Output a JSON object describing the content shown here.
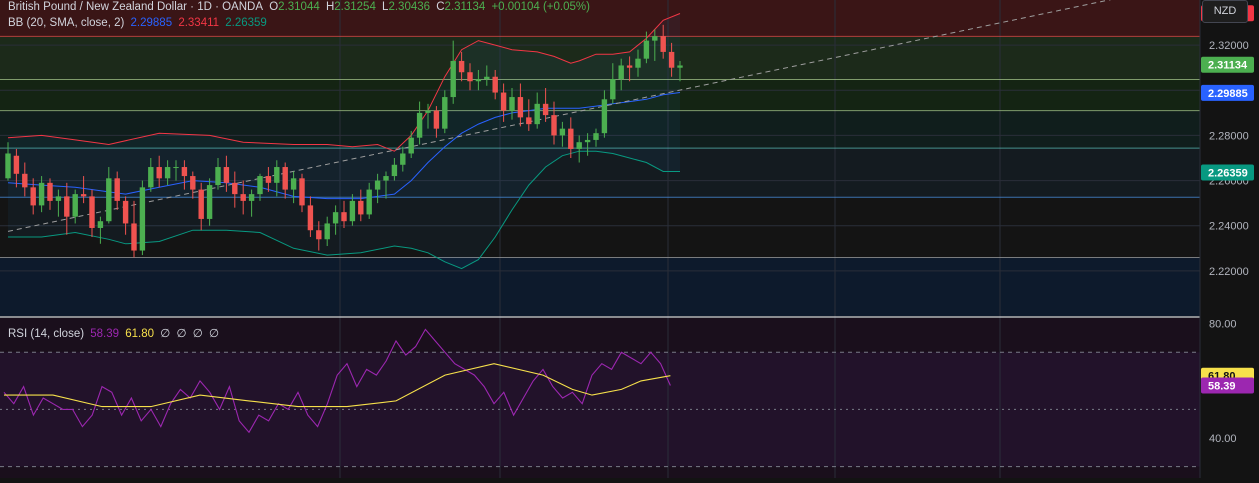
{
  "header": {
    "symbol": "British Pound / New Zealand Dollar · 1D · OANDA",
    "open_label": "O",
    "open": "2.31044",
    "high_label": "H",
    "high": "2.31254",
    "low_label": "L",
    "low": "2.30436",
    "close_label": "C",
    "close": "2.31134",
    "change": "+0.00104 (+0.05%)"
  },
  "bb_legend": {
    "label": "BB (20, SMA, close, 2)",
    "basis": "2.29885",
    "upper": "2.33411",
    "lower": "2.26359"
  },
  "rsi_legend": {
    "label": "RSI (14, close)",
    "rsi": "58.39",
    "ma": "61.80",
    "extras": [
      "∅",
      "∅",
      "∅",
      "∅"
    ]
  },
  "currency_button": "NZD",
  "colors": {
    "up": "#4caf50",
    "down": "#ef5350",
    "basis": "#2962ff",
    "upper": "#f23645",
    "lower": "#089981",
    "rsi": "#9c27b0",
    "rsi_ma": "#f7e14b"
  },
  "chart_data": [
    {
      "type": "candlestick",
      "instrument": "GBP/NZD",
      "timeframe": "1D",
      "price_axis": {
        "ticks": [
          2.22,
          2.24,
          2.26,
          2.28,
          2.3,
          2.32
        ],
        "tick_labels": [
          "2.22000",
          "2.24000",
          "2.26000",
          "2.28000",
          "2.30000",
          "2.32000"
        ]
      },
      "price_range": [
        2.2,
        2.34
      ],
      "horizontal_levels": [
        2.3239,
        2.3048,
        2.291,
        2.2744,
        2.2526,
        2.2259
      ],
      "trendline": [
        [
          0,
          2.2375
        ],
        [
          140,
          2.347
        ]
      ],
      "candles": [
        [
          2.261,
          2.277,
          2.26,
          2.272
        ],
        [
          2.271,
          2.274,
          2.257,
          2.263
        ],
        [
          2.263,
          2.268,
          2.253,
          2.257
        ],
        [
          2.257,
          2.261,
          2.245,
          2.249
        ],
        [
          2.249,
          2.262,
          2.246,
          2.259
        ],
        [
          2.259,
          2.261,
          2.247,
          2.251
        ],
        [
          2.251,
          2.256,
          2.244,
          2.253
        ],
        [
          2.253,
          2.259,
          2.236,
          2.244
        ],
        [
          2.244,
          2.256,
          2.241,
          2.254
        ],
        [
          2.254,
          2.262,
          2.25,
          2.253
        ],
        [
          2.253,
          2.256,
          2.235,
          2.239
        ],
        [
          2.239,
          2.244,
          2.232,
          2.242
        ],
        [
          2.242,
          2.266,
          2.241,
          2.261
        ],
        [
          2.261,
          2.264,
          2.247,
          2.251
        ],
        [
          2.251,
          2.253,
          2.236,
          2.241
        ],
        [
          2.241,
          2.251,
          2.226,
          2.229
        ],
        [
          2.229,
          2.26,
          2.227,
          2.257
        ],
        [
          2.257,
          2.27,
          2.255,
          2.266
        ],
        [
          2.266,
          2.271,
          2.257,
          2.261
        ],
        [
          2.261,
          2.269,
          2.258,
          2.266
        ],
        [
          2.266,
          2.269,
          2.26,
          2.266
        ],
        [
          2.266,
          2.269,
          2.256,
          2.262
        ],
        [
          2.262,
          2.264,
          2.252,
          2.256
        ],
        [
          2.256,
          2.259,
          2.238,
          2.243
        ],
        [
          2.243,
          2.261,
          2.24,
          2.258
        ],
        [
          2.258,
          2.27,
          2.256,
          2.266
        ],
        [
          2.266,
          2.271,
          2.255,
          2.259
        ],
        [
          2.259,
          2.264,
          2.248,
          2.254
        ],
        [
          2.254,
          2.26,
          2.245,
          2.251
        ],
        [
          2.251,
          2.256,
          2.244,
          2.254
        ],
        [
          2.254,
          2.263,
          2.251,
          2.262
        ],
        [
          2.262,
          2.266,
          2.255,
          2.259
        ],
        [
          2.259,
          2.269,
          2.253,
          2.266
        ],
        [
          2.266,
          2.268,
          2.252,
          2.256
        ],
        [
          2.256,
          2.264,
          2.25,
          2.261
        ],
        [
          2.261,
          2.263,
          2.246,
          2.249
        ],
        [
          2.249,
          2.253,
          2.235,
          2.238
        ],
        [
          2.238,
          2.242,
          2.229,
          2.234
        ],
        [
          2.234,
          2.244,
          2.231,
          2.241
        ],
        [
          2.241,
          2.249,
          2.236,
          2.246
        ],
        [
          2.246,
          2.251,
          2.239,
          2.242
        ],
        [
          2.242,
          2.254,
          2.24,
          2.251
        ],
        [
          2.251,
          2.256,
          2.242,
          2.245
        ],
        [
          2.245,
          2.259,
          2.243,
          2.256
        ],
        [
          2.256,
          2.263,
          2.25,
          2.26
        ],
        [
          2.26,
          2.264,
          2.252,
          2.262
        ],
        [
          2.262,
          2.27,
          2.26,
          2.267
        ],
        [
          2.267,
          2.275,
          2.264,
          2.272
        ],
        [
          2.272,
          2.282,
          2.27,
          2.279
        ],
        [
          2.279,
          2.295,
          2.276,
          2.29
        ],
        [
          2.29,
          2.294,
          2.283,
          2.291
        ],
        [
          2.291,
          2.293,
          2.279,
          2.283
        ],
        [
          2.283,
          2.3,
          2.281,
          2.297
        ],
        [
          2.297,
          2.322,
          2.294,
          2.313
        ],
        [
          2.313,
          2.317,
          2.304,
          2.308
        ],
        [
          2.308,
          2.312,
          2.3,
          2.304
        ],
        [
          2.304,
          2.309,
          2.3,
          2.305
        ],
        [
          2.305,
          2.311,
          2.302,
          2.306
        ],
        [
          2.306,
          2.309,
          2.296,
          2.299
        ],
        [
          2.299,
          2.303,
          2.286,
          2.291
        ],
        [
          2.291,
          2.301,
          2.287,
          2.297
        ],
        [
          2.297,
          2.303,
          2.284,
          2.288
        ],
        [
          2.288,
          2.296,
          2.282,
          2.285
        ],
        [
          2.285,
          2.299,
          2.283,
          2.294
        ],
        [
          2.294,
          2.301,
          2.286,
          2.289
        ],
        [
          2.289,
          2.295,
          2.276,
          2.28
        ],
        [
          2.28,
          2.286,
          2.275,
          2.283
        ],
        [
          2.283,
          2.288,
          2.27,
          2.274
        ],
        [
          2.274,
          2.28,
          2.268,
          2.277
        ],
        [
          2.277,
          2.281,
          2.271,
          2.278
        ],
        [
          2.278,
          2.283,
          2.275,
          2.281
        ],
        [
          2.281,
          2.3,
          2.279,
          2.296
        ],
        [
          2.296,
          2.312,
          2.294,
          2.305
        ],
        [
          2.305,
          2.314,
          2.3,
          2.311
        ],
        [
          2.311,
          2.315,
          2.304,
          2.31
        ],
        [
          2.31,
          2.318,
          2.306,
          2.314
        ],
        [
          2.314,
          2.326,
          2.312,
          2.322
        ],
        [
          2.322,
          2.327,
          2.313,
          2.324
        ],
        [
          2.324,
          2.329,
          2.314,
          2.317
        ],
        [
          2.317,
          2.321,
          2.306,
          2.31
        ],
        [
          2.31,
          2.313,
          2.304,
          2.311
        ]
      ],
      "bb_upper": [
        [
          0,
          2.279
        ],
        [
          4,
          2.28
        ],
        [
          8,
          2.278
        ],
        [
          12,
          2.276
        ],
        [
          18,
          2.281
        ],
        [
          24,
          2.28
        ],
        [
          28,
          2.277
        ],
        [
          34,
          2.276
        ],
        [
          38,
          2.276
        ],
        [
          41,
          2.275
        ],
        [
          44,
          2.276
        ],
        [
          46,
          2.273
        ],
        [
          48,
          2.28
        ],
        [
          50,
          2.291
        ],
        [
          52,
          2.306
        ],
        [
          54,
          2.318
        ],
        [
          56,
          2.322
        ],
        [
          58,
          2.32
        ],
        [
          60,
          2.318
        ],
        [
          63,
          2.317
        ],
        [
          65,
          2.315
        ],
        [
          67,
          2.312
        ],
        [
          68,
          2.313
        ],
        [
          70,
          2.316
        ],
        [
          72,
          2.316
        ],
        [
          74,
          2.317
        ],
        [
          76,
          2.323
        ],
        [
          78,
          2.331
        ],
        [
          80,
          2.334
        ]
      ],
      "bb_basis": [
        [
          0,
          2.259
        ],
        [
          4,
          2.258
        ],
        [
          8,
          2.257
        ],
        [
          12,
          2.255
        ],
        [
          14,
          2.254
        ],
        [
          18,
          2.257
        ],
        [
          22,
          2.26
        ],
        [
          26,
          2.259
        ],
        [
          30,
          2.257
        ],
        [
          34,
          2.253
        ],
        [
          38,
          2.252
        ],
        [
          42,
          2.252
        ],
        [
          46,
          2.254
        ],
        [
          48,
          2.26
        ],
        [
          50,
          2.268
        ],
        [
          52,
          2.275
        ],
        [
          54,
          2.281
        ],
        [
          56,
          2.285
        ],
        [
          58,
          2.288
        ],
        [
          60,
          2.29
        ],
        [
          62,
          2.291
        ],
        [
          64,
          2.292
        ],
        [
          66,
          2.292
        ],
        [
          68,
          2.292
        ],
        [
          70,
          2.293
        ],
        [
          72,
          2.294
        ],
        [
          74,
          2.295
        ],
        [
          76,
          2.296
        ],
        [
          78,
          2.298
        ],
        [
          80,
          2.299
        ]
      ],
      "bb_lower": [
        [
          0,
          2.235
        ],
        [
          4,
          2.235
        ],
        [
          8,
          2.237
        ],
        [
          12,
          2.234
        ],
        [
          14,
          2.232
        ],
        [
          18,
          2.233
        ],
        [
          22,
          2.238
        ],
        [
          26,
          2.238
        ],
        [
          30,
          2.237
        ],
        [
          34,
          2.23
        ],
        [
          38,
          2.227
        ],
        [
          42,
          2.228
        ],
        [
          46,
          2.231
        ],
        [
          48,
          2.23
        ],
        [
          50,
          2.228
        ],
        [
          52,
          2.224
        ],
        [
          54,
          2.221
        ],
        [
          56,
          2.225
        ],
        [
          58,
          2.235
        ],
        [
          60,
          2.247
        ],
        [
          62,
          2.258
        ],
        [
          64,
          2.266
        ],
        [
          66,
          2.271
        ],
        [
          68,
          2.273
        ],
        [
          70,
          2.273
        ],
        [
          72,
          2.272
        ],
        [
          74,
          2.27
        ],
        [
          76,
          2.268
        ],
        [
          78,
          2.264
        ],
        [
          80,
          2.264
        ]
      ]
    },
    {
      "type": "line",
      "title": "RSI (14, close)",
      "y_axis": {
        "ticks": [
          40,
          80
        ],
        "tick_labels": [
          "40.00",
          "80.00"
        ]
      },
      "y_range": [
        26,
        82
      ],
      "reference_levels": [
        70,
        50,
        30
      ],
      "series": [
        {
          "name": "RSI",
          "color": "#9c27b0",
          "last": 58.39,
          "values": [
            [
              0,
              56
            ],
            [
              2,
              52
            ],
            [
              4,
              58
            ],
            [
              6,
              48
            ],
            [
              8,
              54
            ],
            [
              10,
              52
            ],
            [
              12,
              50
            ],
            [
              14,
              50
            ],
            [
              16,
              44
            ],
            [
              18,
              48
            ],
            [
              20,
              58
            ],
            [
              22,
              56
            ],
            [
              24,
              48
            ],
            [
              26,
              54
            ],
            [
              28,
              46
            ],
            [
              30,
              50
            ],
            [
              32,
              44
            ],
            [
              34,
              52
            ],
            [
              36,
              57
            ],
            [
              38,
              54
            ],
            [
              40,
              60
            ],
            [
              42,
              56
            ],
            [
              44,
              50
            ],
            [
              46,
              58
            ],
            [
              48,
              46
            ],
            [
              50,
              42
            ],
            [
              52,
              48
            ],
            [
              54,
              46
            ],
            [
              56,
              52
            ],
            [
              58,
              50
            ],
            [
              60,
              56
            ],
            [
              62,
              48
            ],
            [
              64,
              44
            ],
            [
              66,
              52
            ],
            [
              68,
              62
            ],
            [
              70,
              66
            ],
            [
              72,
              58
            ],
            [
              74,
              64
            ],
            [
              76,
              62
            ],
            [
              78,
              67
            ],
            [
              80,
              74
            ],
            [
              82,
              69
            ],
            [
              84,
              72
            ],
            [
              86,
              78
            ],
            [
              88,
              74
            ],
            [
              90,
              70
            ],
            [
              92,
              66
            ],
            [
              94,
              64
            ],
            [
              96,
              62
            ],
            [
              98,
              58
            ],
            [
              100,
              52
            ],
            [
              102,
              56
            ],
            [
              104,
              48
            ],
            [
              106,
              54
            ],
            [
              108,
              60
            ],
            [
              110,
              64
            ],
            [
              112,
              58
            ],
            [
              114,
              54
            ],
            [
              116,
              56
            ],
            [
              118,
              52
            ],
            [
              120,
              62
            ],
            [
              122,
              66
            ],
            [
              124,
              64
            ],
            [
              126,
              70
            ],
            [
              128,
              68
            ],
            [
              130,
              66
            ],
            [
              132,
              70
            ],
            [
              134,
              66
            ],
            [
              136,
              58.39
            ]
          ]
        },
        {
          "name": "RSI-based MA",
          "color": "#f7e14b",
          "last": 61.8,
          "values": [
            [
              0,
              55
            ],
            [
              10,
              55
            ],
            [
              20,
              51
            ],
            [
              30,
              51
            ],
            [
              40,
              55
            ],
            [
              50,
              53
            ],
            [
              60,
              51
            ],
            [
              70,
              51
            ],
            [
              80,
              53
            ],
            [
              90,
              62
            ],
            [
              100,
              66
            ],
            [
              110,
              62
            ],
            [
              116,
              57
            ],
            [
              120,
              55
            ],
            [
              126,
              57
            ],
            [
              130,
              60
            ],
            [
              136,
              61.8
            ]
          ]
        }
      ]
    }
  ]
}
